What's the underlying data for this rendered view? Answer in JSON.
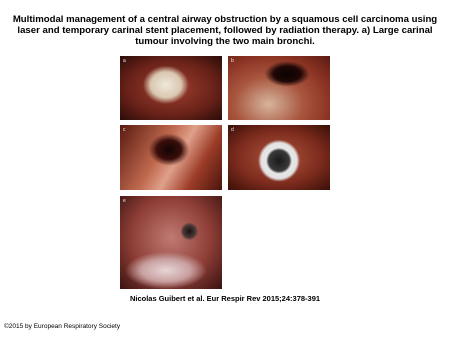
{
  "header": {
    "title": "Multimodal management of a central airway obstruction by a squamous cell carcinoma using laser and temporary carinal stent placement, followed by radiation therapy. a) Large carinal tumour involving the two main bronchi."
  },
  "figure": {
    "panels": [
      {
        "label": "a"
      },
      {
        "label": "b"
      },
      {
        "label": "c"
      },
      {
        "label": "d"
      },
      {
        "label": "e"
      }
    ]
  },
  "citation": "Nicolas Guibert et al. Eur Respir Rev 2015;24:378-391",
  "footer": "©2015 by European Respiratory Society"
}
